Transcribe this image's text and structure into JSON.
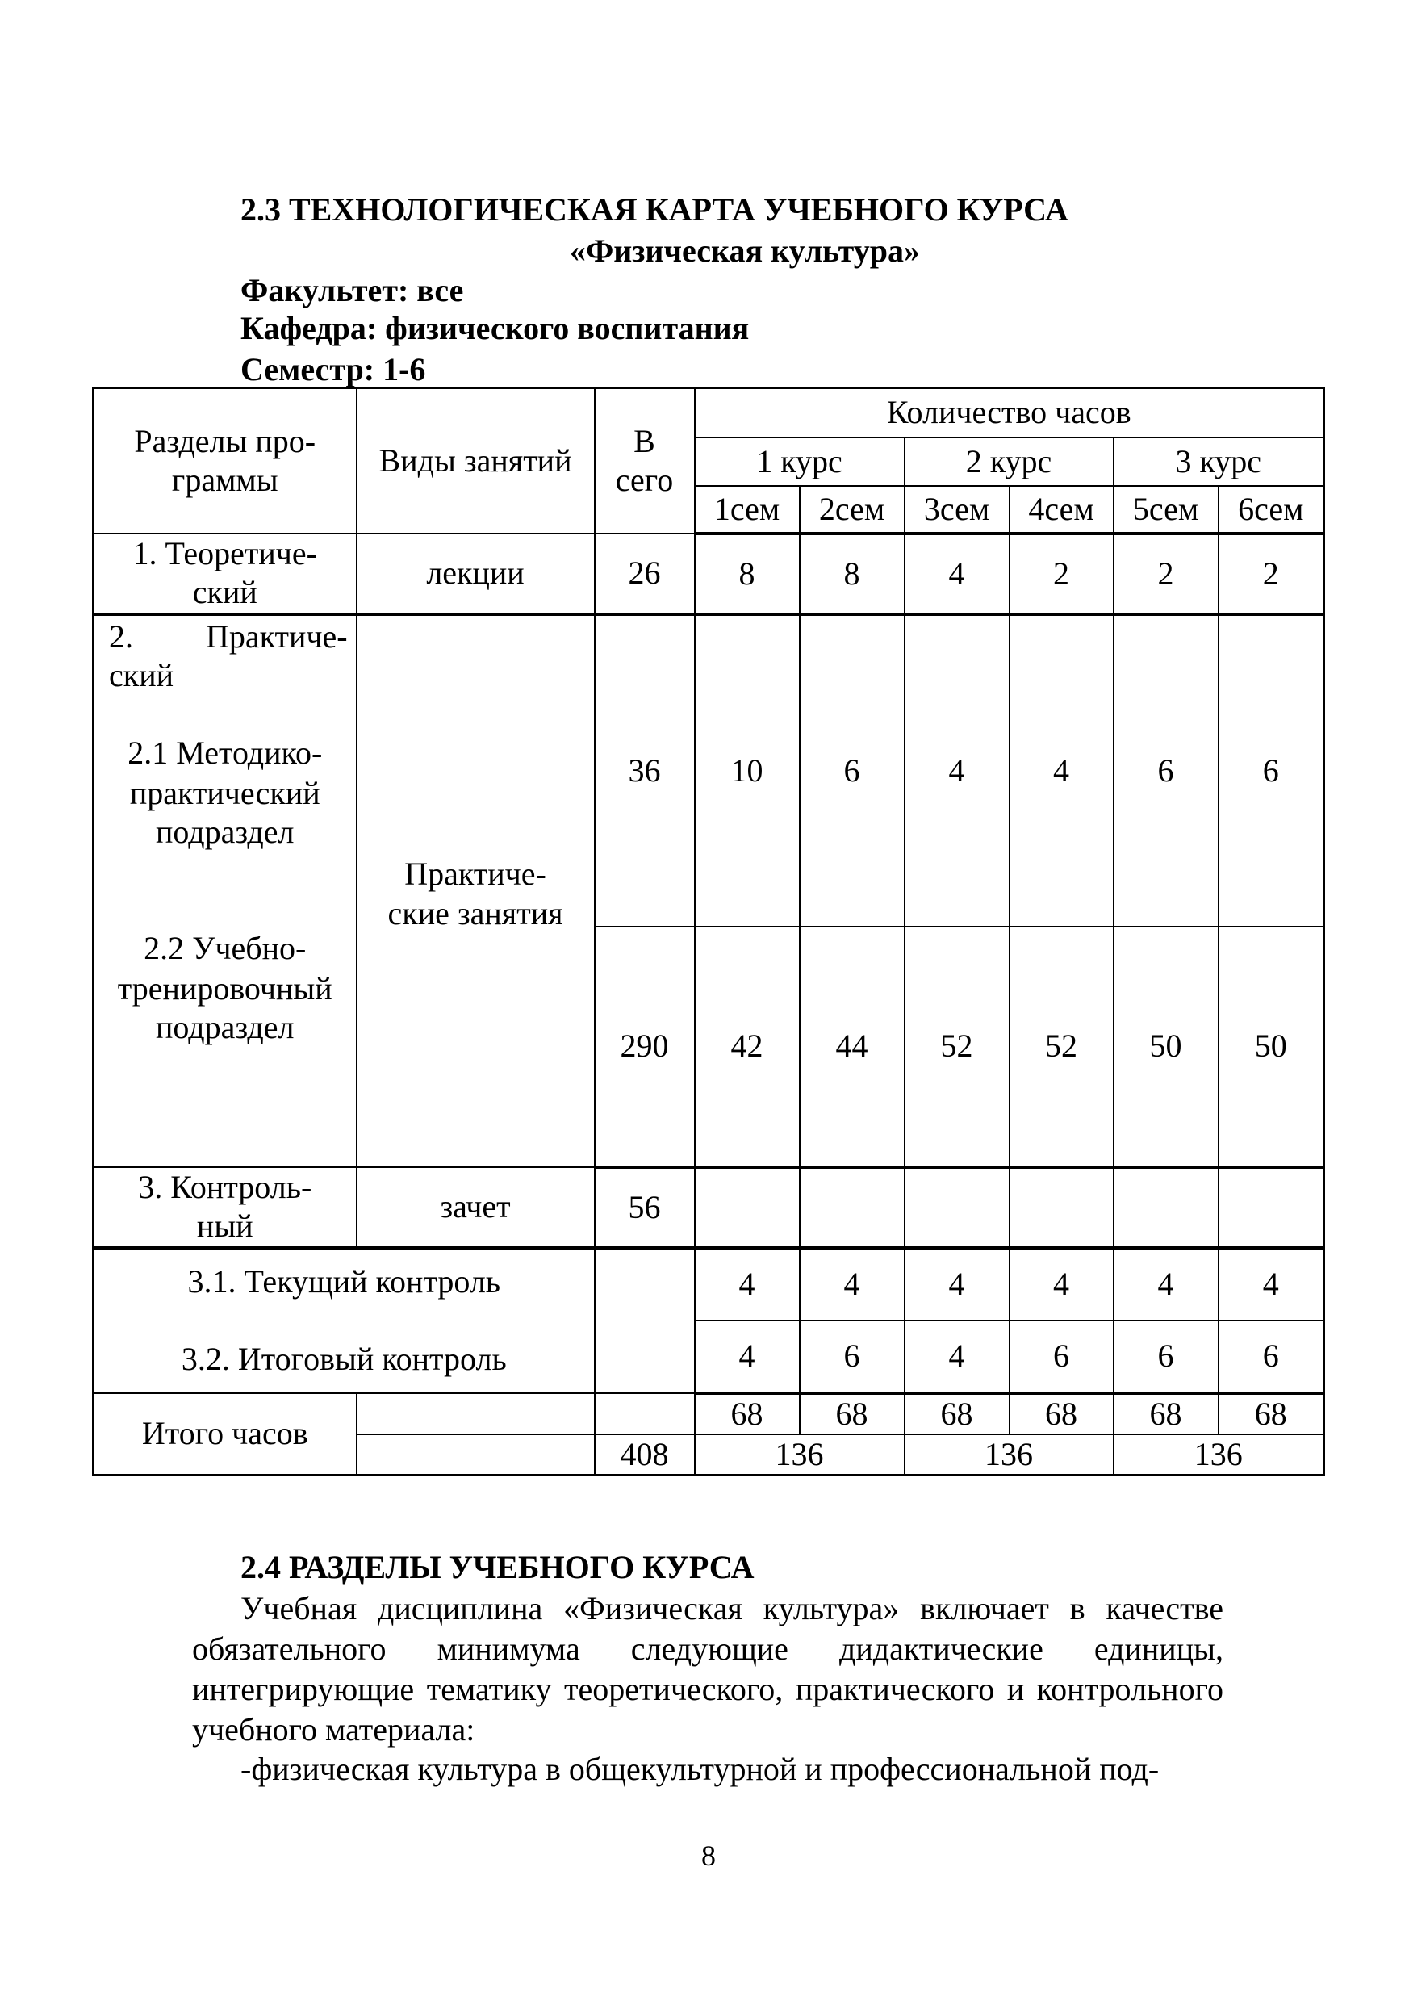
{
  "heading": {
    "title": "2.3 ТЕХНОЛОГИЧЕСКАЯ КАРТА УЧЕБНОГО КУРСА",
    "subtitle": "«Физическая культура»",
    "faculty": "Факультет: все",
    "department": "Кафедра: физического воспитания",
    "semester": "Семестр: 1-6"
  },
  "table": {
    "headers": {
      "sections_line1": "Разделы про-",
      "sections_line2": "граммы",
      "types": "Виды занятий",
      "total_line1": "В",
      "total_line2": "сего",
      "hours": "Количество часов",
      "courses": [
        "1 курс",
        "2 курс",
        "3 курс"
      ],
      "semesters": [
        "1сем",
        "2сем",
        "3сем",
        "4сем",
        "5сем",
        "6сем"
      ]
    },
    "theory": {
      "line1": "1. Теоретиче-",
      "line2": "ский",
      "type": "лекции",
      "total": "26",
      "values": [
        "8",
        "8",
        "4",
        "2",
        "2",
        "2"
      ]
    },
    "practice": {
      "line1a": "2.",
      "line1b": "Практиче-",
      "line2": "ский",
      "sub1_line1": "2.1 Методико-",
      "sub1_line2": "практический",
      "sub1_line3": "подраздел",
      "sub2_line1": "2.2 Учебно-",
      "sub2_line2": "тренировочный",
      "sub2_line3": "подраздел",
      "type_line1": "Практиче-",
      "type_line2": "ские занятия",
      "sub1_total": "36",
      "sub1_values": [
        "10",
        "6",
        "4",
        "4",
        "6",
        "6"
      ],
      "sub2_total": "290",
      "sub2_values": [
        "42",
        "44",
        "52",
        "52",
        "50",
        "50"
      ]
    },
    "control": {
      "line1": "3. Контроль-",
      "line2": "ный",
      "type": "зачет",
      "total": "56",
      "current_label": "3.1. Текущий контроль",
      "current_values": [
        "4",
        "4",
        "4",
        "4",
        "4",
        "4"
      ],
      "final_label": "3.2. Итоговый контроль",
      "final_values": [
        "4",
        "6",
        "4",
        "6",
        "6",
        "6"
      ]
    },
    "totals": {
      "label": "Итого часов",
      "semester_values": [
        "68",
        "68",
        "68",
        "68",
        "68",
        "68"
      ],
      "grand_total": "408",
      "course_totals": [
        "136",
        "136",
        "136"
      ]
    }
  },
  "section": {
    "title": "2.4 РАЗДЕЛЫ УЧЕБНОГО КУРСА",
    "paragraph": "Учебная дисциплина «Физическая культура» включает в качестве обязательного минимума следующие дидактические единицы, интегрирующие тематику теоретического, практического и контрольного учебного материала:",
    "bullet": "-физическая культура в общекультурной и профессиональной под-"
  },
  "page_number": "8"
}
